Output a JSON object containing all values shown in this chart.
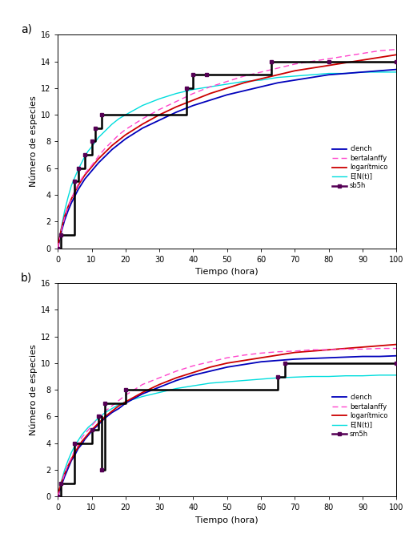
{
  "panel_a": {
    "label": "a)",
    "ylabel": "Número de especies",
    "xlabel": "Tiempo (hora)",
    "ylim": [
      0,
      16
    ],
    "xlim": [
      0,
      100
    ],
    "yticks": [
      0,
      2,
      4,
      6,
      8,
      10,
      12,
      14,
      16
    ],
    "xticks": [
      0,
      10,
      20,
      30,
      40,
      50,
      60,
      70,
      80,
      90,
      100
    ],
    "step_x": [
      0,
      1,
      5,
      6,
      8,
      10,
      11,
      13,
      38,
      40,
      44,
      63,
      80,
      100
    ],
    "step_y": [
      0,
      1,
      5,
      6,
      7,
      8,
      9,
      10,
      12,
      13,
      13,
      14,
      14,
      14
    ],
    "clench_x": [
      0,
      1,
      2,
      3,
      4,
      5,
      6,
      7,
      8,
      9,
      10,
      12,
      14,
      16,
      18,
      20,
      25,
      30,
      35,
      40,
      45,
      50,
      55,
      60,
      65,
      70,
      75,
      80,
      85,
      90,
      95,
      100
    ],
    "clench_y": [
      0,
      1.2,
      2.1,
      2.8,
      3.4,
      3.9,
      4.4,
      4.8,
      5.2,
      5.5,
      5.8,
      6.4,
      6.9,
      7.4,
      7.8,
      8.2,
      9.0,
      9.6,
      10.2,
      10.7,
      11.1,
      11.5,
      11.8,
      12.1,
      12.4,
      12.6,
      12.8,
      13.0,
      13.1,
      13.2,
      13.3,
      13.4
    ],
    "bertalanffy_x": [
      0,
      1,
      2,
      3,
      4,
      5,
      6,
      7,
      8,
      9,
      10,
      12,
      14,
      16,
      18,
      20,
      25,
      30,
      35,
      40,
      45,
      50,
      55,
      60,
      65,
      70,
      75,
      80,
      85,
      90,
      95,
      100
    ],
    "bertalanffy_y": [
      0,
      1.3,
      2.3,
      3.1,
      3.7,
      4.3,
      4.8,
      5.2,
      5.6,
      5.9,
      6.2,
      6.9,
      7.5,
      8.0,
      8.5,
      8.9,
      9.7,
      10.4,
      11.0,
      11.6,
      12.1,
      12.5,
      12.9,
      13.2,
      13.5,
      13.8,
      14.0,
      14.2,
      14.4,
      14.6,
      14.8,
      14.9
    ],
    "logaritmico_x": [
      0,
      0.5,
      1,
      2,
      3,
      4,
      5,
      6,
      7,
      8,
      9,
      10,
      12,
      14,
      16,
      18,
      20,
      25,
      30,
      35,
      40,
      45,
      50,
      55,
      60,
      65,
      70,
      75,
      80,
      85,
      90,
      95,
      100
    ],
    "logaritmico_y": [
      0,
      0.8,
      1.4,
      2.4,
      3.1,
      3.7,
      4.2,
      4.7,
      5.1,
      5.5,
      5.8,
      6.1,
      6.7,
      7.2,
      7.7,
      8.1,
      8.5,
      9.3,
      10.0,
      10.6,
      11.1,
      11.6,
      12.0,
      12.4,
      12.7,
      13.0,
      13.3,
      13.5,
      13.7,
      13.9,
      14.1,
      14.3,
      14.5
    ],
    "EN_x": [
      0,
      1,
      2,
      3,
      4,
      5,
      6,
      7,
      8,
      9,
      10,
      12,
      14,
      16,
      18,
      20,
      25,
      30,
      35,
      40,
      45,
      50,
      55,
      60,
      65,
      70,
      75,
      80,
      85,
      90,
      95,
      100
    ],
    "EN_y": [
      0,
      1.5,
      2.8,
      3.8,
      4.7,
      5.3,
      5.9,
      6.4,
      6.9,
      7.3,
      7.6,
      8.3,
      8.8,
      9.3,
      9.7,
      10.0,
      10.7,
      11.2,
      11.6,
      11.9,
      12.1,
      12.3,
      12.5,
      12.6,
      12.8,
      12.9,
      13.0,
      13.1,
      13.1,
      13.2,
      13.2,
      13.2
    ],
    "legend_entries": [
      "clench",
      "bertalanffy",
      "logarítmico",
      "E[N(t)]",
      "sb5h"
    ],
    "clench_color": "#0000bb",
    "bertalanffy_color": "#ff44cc",
    "logaritmico_color": "#cc0000",
    "EN_color": "#00dddd",
    "step_color": "#000000",
    "step_marker_color": "#550055"
  },
  "panel_b": {
    "label": "b)",
    "ylabel": "Número de especies",
    "xlabel": "Tiempo (hora)",
    "ylim": [
      0,
      16
    ],
    "xlim": [
      0,
      100
    ],
    "yticks": [
      0,
      2,
      4,
      6,
      8,
      10,
      12,
      14,
      16
    ],
    "xticks": [
      0,
      10,
      20,
      30,
      40,
      50,
      60,
      70,
      80,
      90,
      100
    ],
    "step_x": [
      0,
      1,
      5,
      10,
      12,
      13,
      14,
      20,
      65,
      67,
      100
    ],
    "step_y": [
      0,
      1,
      4,
      5,
      6,
      2,
      7,
      8,
      9,
      10,
      10
    ],
    "clench_x": [
      0,
      1,
      2,
      3,
      4,
      5,
      6,
      7,
      8,
      9,
      10,
      12,
      14,
      16,
      18,
      20,
      25,
      30,
      35,
      40,
      45,
      50,
      55,
      60,
      65,
      70,
      75,
      80,
      85,
      90,
      95,
      100
    ],
    "clench_y": [
      0,
      0.8,
      1.5,
      2.1,
      2.7,
      3.1,
      3.6,
      3.9,
      4.3,
      4.6,
      4.9,
      5.4,
      5.9,
      6.3,
      6.6,
      7.0,
      7.7,
      8.2,
      8.7,
      9.1,
      9.4,
      9.7,
      9.9,
      10.1,
      10.2,
      10.3,
      10.35,
      10.4,
      10.45,
      10.5,
      10.5,
      10.55
    ],
    "bertalanffy_x": [
      0,
      1,
      2,
      3,
      4,
      5,
      6,
      7,
      8,
      9,
      10,
      12,
      14,
      16,
      18,
      20,
      25,
      30,
      35,
      40,
      45,
      50,
      55,
      60,
      65,
      70,
      75,
      80,
      85,
      90,
      95,
      100
    ],
    "bertalanffy_y": [
      0,
      0.9,
      1.7,
      2.4,
      2.9,
      3.5,
      3.9,
      4.4,
      4.7,
      5.0,
      5.3,
      5.9,
      6.4,
      6.8,
      7.2,
      7.6,
      8.4,
      8.9,
      9.4,
      9.8,
      10.1,
      10.4,
      10.6,
      10.75,
      10.85,
      10.9,
      11.0,
      11.0,
      11.05,
      11.05,
      11.1,
      11.1
    ],
    "logaritmico_x": [
      0,
      0.5,
      1,
      2,
      3,
      4,
      5,
      6,
      7,
      8,
      9,
      10,
      12,
      14,
      16,
      18,
      20,
      25,
      30,
      35,
      40,
      45,
      50,
      55,
      60,
      65,
      70,
      75,
      80,
      85,
      90,
      95,
      100
    ],
    "logaritmico_y": [
      0,
      0.6,
      1.0,
      1.7,
      2.3,
      2.8,
      3.3,
      3.7,
      4.1,
      4.4,
      4.7,
      5.0,
      5.5,
      6.0,
      6.4,
      6.8,
      7.1,
      7.8,
      8.4,
      8.9,
      9.3,
      9.7,
      10.0,
      10.2,
      10.4,
      10.6,
      10.8,
      10.9,
      11.0,
      11.1,
      11.2,
      11.3,
      11.4
    ],
    "EN_x": [
      0,
      1,
      2,
      3,
      4,
      5,
      6,
      7,
      8,
      9,
      10,
      12,
      14,
      16,
      18,
      20,
      25,
      30,
      35,
      40,
      45,
      50,
      55,
      60,
      65,
      70,
      75,
      80,
      85,
      90,
      95,
      100
    ],
    "EN_y": [
      0,
      1.1,
      2.0,
      2.7,
      3.3,
      3.8,
      4.2,
      4.6,
      4.9,
      5.2,
      5.4,
      5.9,
      6.3,
      6.6,
      6.9,
      7.1,
      7.5,
      7.8,
      8.1,
      8.3,
      8.5,
      8.6,
      8.7,
      8.8,
      8.9,
      8.95,
      9.0,
      9.0,
      9.05,
      9.05,
      9.1,
      9.1
    ],
    "legend_entries": [
      "clench",
      "bertalanffy",
      "logarítmico",
      "E[N(t)]",
      "sm5h"
    ],
    "clench_color": "#0000bb",
    "bertalanffy_color": "#ff44cc",
    "logaritmico_color": "#cc0000",
    "EN_color": "#00dddd",
    "step_color": "#000000",
    "step_marker_color": "#550055"
  },
  "bg_color": "#ffffff",
  "panel_bg": "#ffffff",
  "fig_width": 5.16,
  "fig_height": 6.66,
  "dpi": 100
}
